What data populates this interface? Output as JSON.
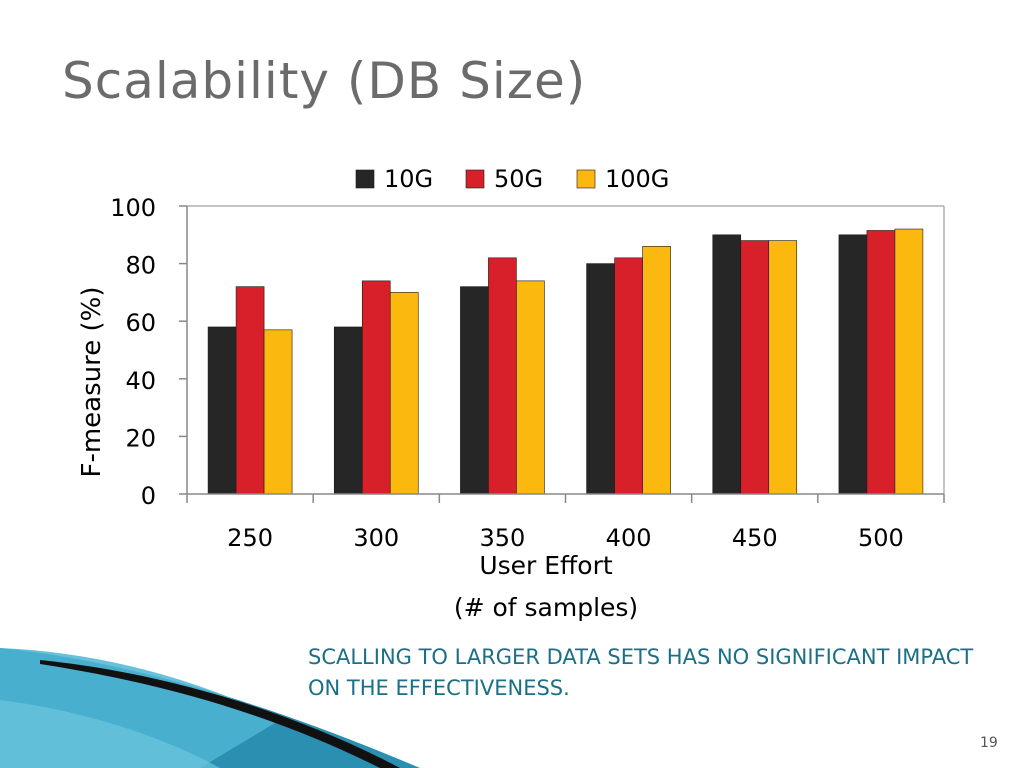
{
  "slide": {
    "title": "Scalability (DB Size)",
    "caption": "SCALLING TO LARGER DATA SETS HAS NO SIGNIFICANT IMPACT ON THE EFFECTIVENESS.",
    "page_number": "19"
  },
  "colors": {
    "series_10g": "#262626",
    "series_50g": "#d8202b",
    "series_100g": "#fbb90f",
    "axis": "#888888",
    "caption": "#1b6f86",
    "title": "#6b6b6b"
  },
  "chart_data": {
    "type": "bar",
    "title": "",
    "categories": [
      "250",
      "300",
      "350",
      "400",
      "450",
      "500"
    ],
    "series": [
      {
        "name": "10G",
        "color": "#262626",
        "values": [
          58,
          58,
          72,
          80,
          90,
          90
        ]
      },
      {
        "name": "50G",
        "color": "#d8202b",
        "values": [
          72,
          74,
          82,
          82,
          88,
          91.5
        ]
      },
      {
        "name": "100G",
        "color": "#fbb90f",
        "values": [
          57,
          70,
          74,
          86,
          88,
          92
        ]
      }
    ],
    "xlabel": "User Effort",
    "xlabel_sub": "(# of samples)",
    "ylabel": "F-measure (%)",
    "ylim": [
      0,
      100
    ],
    "yticks": [
      "0",
      "20",
      "40",
      "60",
      "80",
      "100"
    ],
    "legend_position": "top-center",
    "grid": false
  }
}
